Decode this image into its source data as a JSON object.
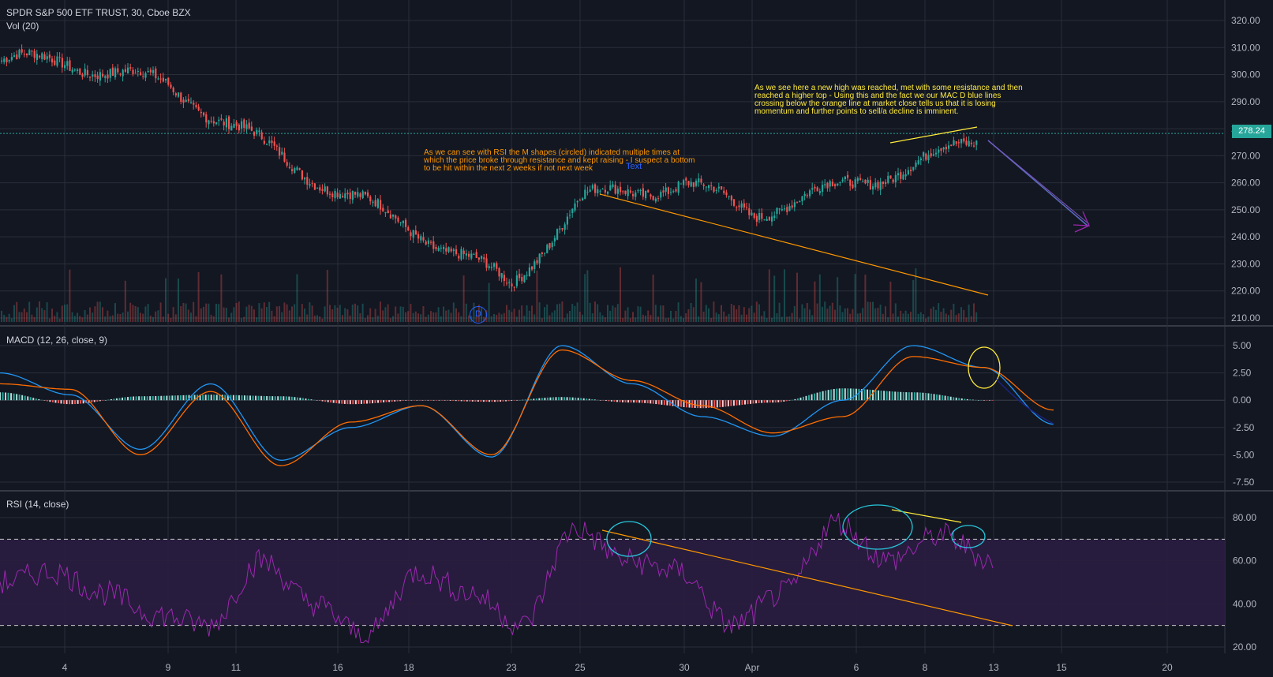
{
  "header": {
    "symbol": "SPDR S&P 500 ETF TRUST, 30, Cboe BZX",
    "volume": "Vol (20)"
  },
  "panes": {
    "macd": "MACD (12, 26, close, 9)",
    "rsi": "RSI (14, close)"
  },
  "colors": {
    "background": "#131722",
    "grid": "#2a2e39",
    "up": "#26a69a",
    "down": "#ef5350",
    "macd_line": "#2196f3",
    "signal_line": "#ff6d00",
    "rsi_line": "#9c27b0",
    "rsi_band": "#2a1d40",
    "annotation_yellow": "#ffeb3b",
    "annotation_orange": "#ff9800",
    "annotation_cyan": "#26c6da",
    "text_tool": "#2962ff",
    "last_price_bg": "#26a69a"
  },
  "annotations": {
    "rsi_note": "As we can see with RSI the M shapes (circled) indicated multiple times at\nwhich the price broke through resistance and kept raising - I suspect a bottom\nto be hit within the next 2 weeks if not next week",
    "macd_note": "As we see here a new high was reached, met with some resistance and then\nreached a higher top - Using this and the fact we our MAC D blue lines\ncrossing below the orange line at market close tells us that it is losing\nmomentum and further points to sell/a decline is imminent.",
    "text_tool": "Text",
    "dividend_marker": "D"
  },
  "last_price": "278.24",
  "chart_data": [
    {
      "type": "candlestick",
      "title": "SPDR S&P 500 ETF TRUST, 30, Cboe BZX",
      "x_ticks": [
        "4",
        "9",
        "11",
        "16",
        "18",
        "23",
        "25",
        "30",
        "Apr",
        "6",
        "8",
        "13",
        "15",
        "20"
      ],
      "y_ticks": [
        "320.00",
        "310.00",
        "300.00",
        "290.00",
        "280.00",
        "270.00",
        "260.00",
        "250.00",
        "240.00",
        "230.00",
        "220.00",
        "210.00"
      ],
      "ylim": [
        210,
        320
      ],
      "last_price": 278.24,
      "key_points": [
        {
          "x": "4",
          "close": 305
        },
        {
          "x": "9",
          "close": 296
        },
        {
          "x": "11",
          "close": 280
        },
        {
          "x": "16",
          "close": 257
        },
        {
          "x": "18",
          "close": 244
        },
        {
          "x": "23",
          "close": 222
        },
        {
          "x": "25",
          "close": 254
        },
        {
          "x": "30",
          "close": 260
        },
        {
          "x": "Apr",
          "close": 249
        },
        {
          "x": "6",
          "close": 260
        },
        {
          "x": "8",
          "close": 268
        },
        {
          "x": "13",
          "close": 278
        }
      ],
      "volume_series": "Vol (20)"
    },
    {
      "type": "line",
      "title": "MACD (12, 26, close, 9)",
      "y_ticks": [
        "5.00",
        "2.50",
        "0.00",
        "-2.50",
        "-5.00",
        "-7.50"
      ],
      "ylim": [
        -7.5,
        5
      ],
      "series": [
        {
          "name": "MACD",
          "key_values": [
            2.5,
            0.5,
            -4.5,
            1.5,
            -5.5,
            -2.5,
            -0.5,
            -5.2,
            5.0,
            1.5,
            -1.5,
            -3.3,
            0.0,
            5.0,
            3.0,
            -2.2
          ]
        },
        {
          "name": "Signal",
          "key_values": [
            1.5,
            1.0,
            -5.0,
            0.8,
            -6.0,
            -2.0,
            -0.5,
            -5.0,
            4.6,
            1.8,
            -0.5,
            -3.0,
            -1.5,
            4.0,
            3.0,
            -0.9
          ]
        }
      ]
    },
    {
      "type": "line",
      "title": "RSI (14, close)",
      "y_ticks": [
        "80.00",
        "60.00",
        "40.00",
        "20.00"
      ],
      "ylim": [
        20,
        90
      ],
      "bands": [
        30,
        70
      ],
      "series": [
        {
          "name": "RSI",
          "key_values": [
            50,
            55,
            45,
            35,
            30,
            60,
            40,
            25,
            55,
            45,
            30,
            75,
            60,
            55,
            30,
            45,
            78,
            60,
            72,
            60
          ]
        }
      ]
    }
  ]
}
